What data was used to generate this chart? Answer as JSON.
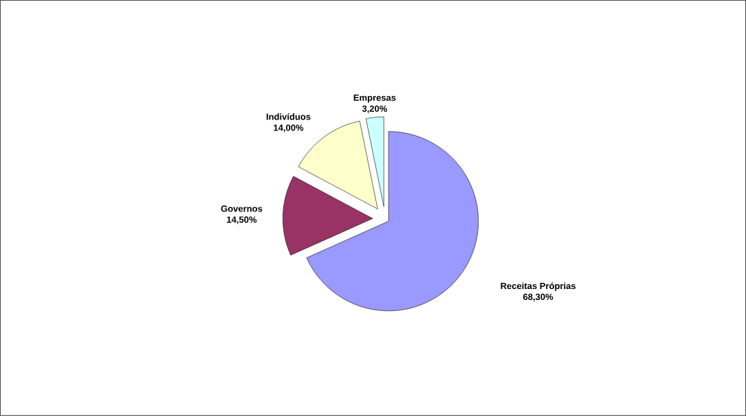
{
  "chart_data": {
    "type": "pie",
    "categories": [
      "Receitas Próprias",
      "Governos",
      "Indivíduos",
      "Empresas"
    ],
    "values": [
      68.3,
      14.5,
      14.0,
      3.2
    ],
    "colors": [
      "#9999ff",
      "#993366",
      "#ffffcc",
      "#ccffff"
    ],
    "value_labels": [
      "68,30%",
      "14,50%",
      "14,00%",
      "3,20%"
    ]
  }
}
